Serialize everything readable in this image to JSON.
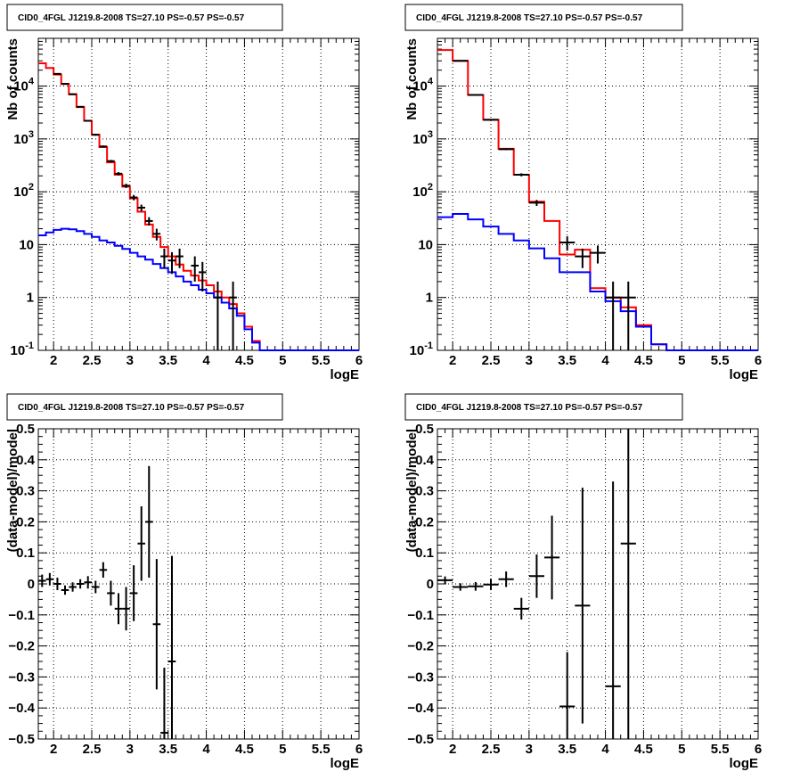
{
  "chart_data": [
    {
      "id": "p1",
      "type": "line",
      "title": "CID0_4FGL J1219.8-2008 TS=27.10 PS=-0.57 PS=-0.57",
      "xlabel": "logE",
      "ylabel": "Nb of counts",
      "xlim": [
        1.8,
        6
      ],
      "ylim": [
        0.1,
        80000
      ],
      "yscale": "log",
      "grid": true,
      "xticks": [
        "2",
        "2.5",
        "3",
        "3.5",
        "4",
        "4.5",
        "5",
        "5.5",
        "6"
      ],
      "yticks": [
        "10^-1",
        "1",
        "10",
        "10^2",
        "10^3",
        "10^4"
      ],
      "bin_edges": [
        1.8,
        1.9,
        2.0,
        2.1,
        2.2,
        2.3,
        2.4,
        2.5,
        2.6,
        2.7,
        2.8,
        2.9,
        3.0,
        3.1,
        3.2,
        3.3,
        3.4,
        3.5,
        3.6,
        3.7,
        3.8,
        3.9,
        4.0,
        4.1,
        4.2,
        4.3,
        4.4,
        4.5,
        4.6,
        4.7,
        4.8,
        4.9,
        5.0,
        5.1,
        5.2,
        5.3,
        5.4,
        5.5,
        5.6,
        5.7,
        5.8,
        5.9,
        6.0
      ],
      "series": [
        {
          "color": "#ff0000",
          "style": "step",
          "values": [
            27000,
            22000,
            16500,
            11000,
            7000,
            4000,
            2200,
            1200,
            700,
            360,
            210,
            125,
            75,
            42,
            24,
            14,
            9,
            6,
            4.2,
            3.2,
            2.6,
            2.1,
            1.7,
            1.3,
            1.0,
            0.75,
            0.5,
            0.28,
            0.15,
            0.1,
            0.1,
            0.1,
            0.1,
            0.1,
            0.1,
            0.1,
            0.1,
            0.1,
            0.1,
            0.1,
            0.1,
            0.1
          ]
        },
        {
          "color": "#0000ff",
          "style": "step",
          "values": [
            15,
            17,
            19,
            20,
            19.5,
            18,
            16,
            14,
            12,
            11,
            9.5,
            8.3,
            7,
            6,
            5.2,
            4.3,
            3.6,
            3,
            2.5,
            2,
            1.7,
            1.4,
            1.2,
            1,
            0.8,
            0.62,
            0.45,
            0.25,
            0.14,
            0.1,
            0.1,
            0.1,
            0.1,
            0.1,
            0.1,
            0.1,
            0.1,
            0.1,
            0.1,
            0.1,
            0.1,
            0.1
          ]
        }
      ],
      "data_points": [
        {
          "x": 2.05,
          "y": 17000,
          "lo": 16700,
          "hi": 17300
        },
        {
          "x": 2.15,
          "y": 11000,
          "lo": 10800,
          "hi": 11200
        },
        {
          "x": 2.25,
          "y": 7000,
          "lo": 6850,
          "hi": 7150
        },
        {
          "x": 2.35,
          "y": 4050,
          "lo": 3950,
          "hi": 4150
        },
        {
          "x": 2.45,
          "y": 2200,
          "lo": 2130,
          "hi": 2270
        },
        {
          "x": 2.55,
          "y": 1200,
          "lo": 1150,
          "hi": 1250
        },
        {
          "x": 2.65,
          "y": 720,
          "lo": 690,
          "hi": 750
        },
        {
          "x": 2.75,
          "y": 380,
          "lo": 360,
          "hi": 400
        },
        {
          "x": 2.85,
          "y": 220,
          "lo": 205,
          "hi": 235
        },
        {
          "x": 2.95,
          "y": 130,
          "lo": 118,
          "hi": 142
        },
        {
          "x": 3.05,
          "y": 78,
          "lo": 69,
          "hi": 87
        },
        {
          "x": 3.15,
          "y": 50,
          "lo": 43,
          "hi": 57
        },
        {
          "x": 3.25,
          "y": 28,
          "lo": 23,
          "hi": 33
        },
        {
          "x": 3.35,
          "y": 16,
          "lo": 12,
          "hi": 20
        },
        {
          "x": 3.45,
          "y": 6,
          "lo": 3.6,
          "hi": 8.4
        },
        {
          "x": 3.55,
          "y": 5,
          "lo": 2.8,
          "hi": 7.2
        },
        {
          "x": 3.65,
          "y": 6,
          "lo": 3.6,
          "hi": 8.4
        },
        {
          "x": 3.85,
          "y": 4,
          "lo": 2,
          "hi": 6
        },
        {
          "x": 3.95,
          "y": 3,
          "lo": 1.3,
          "hi": 4.7
        },
        {
          "x": 4.15,
          "y": 1,
          "lo": 0.1,
          "hi": 2
        },
        {
          "x": 4.35,
          "y": 1,
          "lo": 0.1,
          "hi": 2
        }
      ]
    },
    {
      "id": "p2",
      "type": "line",
      "title": "CID0_4FGL J1219.8-2008 TS=27.10 PS=-0.57 PS=-0.57",
      "xlabel": "logE",
      "ylabel": "Nb of counts",
      "xlim": [
        1.8,
        6
      ],
      "ylim": [
        0.1,
        80000
      ],
      "yscale": "log",
      "grid": true,
      "xticks": [
        "2",
        "2.5",
        "3",
        "3.5",
        "4",
        "4.5",
        "5",
        "5.5",
        "6"
      ],
      "yticks": [
        "10^-1",
        "1",
        "10",
        "10^2",
        "10^3",
        "10^4"
      ],
      "bin_edges": [
        1.8,
        2.0,
        2.2,
        2.4,
        2.6,
        2.8,
        3.0,
        3.2,
        3.4,
        3.6,
        3.8,
        4.0,
        4.2,
        4.4,
        4.6,
        4.8,
        5.0,
        5.2,
        5.4,
        5.6,
        5.8,
        6.0
      ],
      "series": [
        {
          "color": "#ff0000",
          "style": "step",
          "values": [
            48000,
            30000,
            6800,
            2300,
            650,
            210,
            65,
            28,
            6.5,
            8,
            1.5,
            1.0,
            0.65,
            0.3,
            0.13,
            0.1,
            0.1,
            0.1,
            0.1,
            0.1,
            0.1
          ]
        },
        {
          "color": "#0000ff",
          "style": "step",
          "values": [
            33,
            38,
            30,
            22,
            16,
            12,
            8.5,
            5.5,
            3,
            3,
            1.3,
            0.85,
            0.55,
            0.28,
            0.13,
            0.1,
            0.1,
            0.1,
            0.1,
            0.1,
            0.1
          ]
        }
      ],
      "data_points": [
        {
          "x": 2.1,
          "y": 30000,
          "lo": 29800,
          "hi": 30200
        },
        {
          "x": 2.3,
          "y": 6800,
          "lo": 6700,
          "hi": 6900
        },
        {
          "x": 2.5,
          "y": 2300,
          "lo": 2250,
          "hi": 2350
        },
        {
          "x": 2.7,
          "y": 640,
          "lo": 615,
          "hi": 665
        },
        {
          "x": 2.9,
          "y": 210,
          "lo": 196,
          "hi": 224
        },
        {
          "x": 3.1,
          "y": 62,
          "lo": 54,
          "hi": 70
        },
        {
          "x": 3.5,
          "y": 11,
          "lo": 7.7,
          "hi": 14.3
        },
        {
          "x": 3.7,
          "y": 6,
          "lo": 3.6,
          "hi": 8.4
        },
        {
          "x": 3.9,
          "y": 7,
          "lo": 4.4,
          "hi": 9.6
        },
        {
          "x": 4.1,
          "y": 1,
          "lo": 0.1,
          "hi": 2
        },
        {
          "x": 4.3,
          "y": 1,
          "lo": 0.1,
          "hi": 2
        }
      ]
    },
    {
      "id": "p3",
      "type": "scatter",
      "title": "CID0_4FGL J1219.8-2008 TS=27.10 PS=-0.57 PS=-0.57",
      "xlabel": "logE",
      "ylabel": "(data-model)/model",
      "xlim": [
        1.8,
        6
      ],
      "ylim": [
        -0.5,
        0.5
      ],
      "yscale": "linear",
      "grid": true,
      "xticks": [
        "2",
        "2.5",
        "3",
        "3.5",
        "4",
        "4.5",
        "5",
        "5.5",
        "6"
      ],
      "yticks": [
        "−0.5",
        "−0.4",
        "−0.3",
        "−0.2",
        "−0.1",
        "0",
        "0.1",
        "0.2",
        "0.3",
        "0.4",
        "0.5"
      ],
      "bin_width": 0.1,
      "data_points": [
        {
          "x": 1.85,
          "y": 0.01,
          "lo": -0.01,
          "hi": 0.03
        },
        {
          "x": 1.95,
          "y": 0.015,
          "lo": -0.005,
          "hi": 0.035
        },
        {
          "x": 2.05,
          "y": 0.0,
          "lo": -0.02,
          "hi": 0.02
        },
        {
          "x": 2.15,
          "y": -0.02,
          "lo": -0.035,
          "hi": -0.005
        },
        {
          "x": 2.25,
          "y": -0.01,
          "lo": -0.025,
          "hi": 0.005
        },
        {
          "x": 2.35,
          "y": 0.0,
          "lo": -0.015,
          "hi": 0.015
        },
        {
          "x": 2.45,
          "y": 0.005,
          "lo": -0.015,
          "hi": 0.025
        },
        {
          "x": 2.55,
          "y": -0.01,
          "lo": -0.03,
          "hi": 0.01
        },
        {
          "x": 2.65,
          "y": 0.045,
          "lo": 0.02,
          "hi": 0.07
        },
        {
          "x": 2.75,
          "y": -0.03,
          "lo": -0.07,
          "hi": 0.01
        },
        {
          "x": 2.85,
          "y": -0.08,
          "lo": -0.13,
          "hi": -0.03
        },
        {
          "x": 2.95,
          "y": -0.08,
          "lo": -0.15,
          "hi": -0.01
        },
        {
          "x": 3.05,
          "y": -0.03,
          "lo": -0.12,
          "hi": 0.06
        },
        {
          "x": 3.15,
          "y": 0.13,
          "lo": 0.01,
          "hi": 0.25
        },
        {
          "x": 3.25,
          "y": 0.2,
          "lo": 0.02,
          "hi": 0.38
        },
        {
          "x": 3.35,
          "y": -0.13,
          "lo": -0.34,
          "hi": 0.08
        },
        {
          "x": 3.45,
          "y": -0.48,
          "lo": -0.5,
          "hi": -0.27
        },
        {
          "x": 3.55,
          "y": -0.25,
          "lo": -0.5,
          "hi": 0.09
        }
      ]
    },
    {
      "id": "p4",
      "type": "scatter",
      "title": "CID0_4FGL J1219.8-2008 TS=27.10 PS=-0.57 PS=-0.57",
      "xlabel": "logE",
      "ylabel": "(data-model)/model",
      "xlim": [
        1.8,
        6
      ],
      "ylim": [
        -0.5,
        0.5
      ],
      "yscale": "linear",
      "grid": true,
      "xticks": [
        "2",
        "2.5",
        "3",
        "3.5",
        "4",
        "4.5",
        "5",
        "5.5",
        "6"
      ],
      "yticks": [
        "−0.5",
        "−0.4",
        "−0.3",
        "−0.2",
        "−0.1",
        "0",
        "0.1",
        "0.2",
        "0.3",
        "0.4",
        "0.5"
      ],
      "bin_width": 0.2,
      "data_points": [
        {
          "x": 1.9,
          "y": 0.012,
          "lo": 0.0,
          "hi": 0.024
        },
        {
          "x": 2.1,
          "y": -0.01,
          "lo": -0.022,
          "hi": 0.002
        },
        {
          "x": 2.3,
          "y": -0.008,
          "lo": -0.022,
          "hi": 0.006
        },
        {
          "x": 2.5,
          "y": -0.002,
          "lo": -0.02,
          "hi": 0.016
        },
        {
          "x": 2.7,
          "y": 0.015,
          "lo": -0.01,
          "hi": 0.04
        },
        {
          "x": 2.9,
          "y": -0.08,
          "lo": -0.115,
          "hi": -0.045
        },
        {
          "x": 3.1,
          "y": 0.025,
          "lo": -0.045,
          "hi": 0.095
        },
        {
          "x": 3.3,
          "y": 0.085,
          "lo": -0.05,
          "hi": 0.22
        },
        {
          "x": 3.5,
          "y": -0.395,
          "lo": -0.5,
          "hi": -0.22
        },
        {
          "x": 3.7,
          "y": -0.07,
          "lo": -0.45,
          "hi": 0.31
        },
        {
          "x": 4.1,
          "y": -0.33,
          "lo": -0.5,
          "hi": 0.33
        },
        {
          "x": 4.3,
          "y": 0.13,
          "lo": -0.5,
          "hi": 0.5
        }
      ]
    }
  ]
}
